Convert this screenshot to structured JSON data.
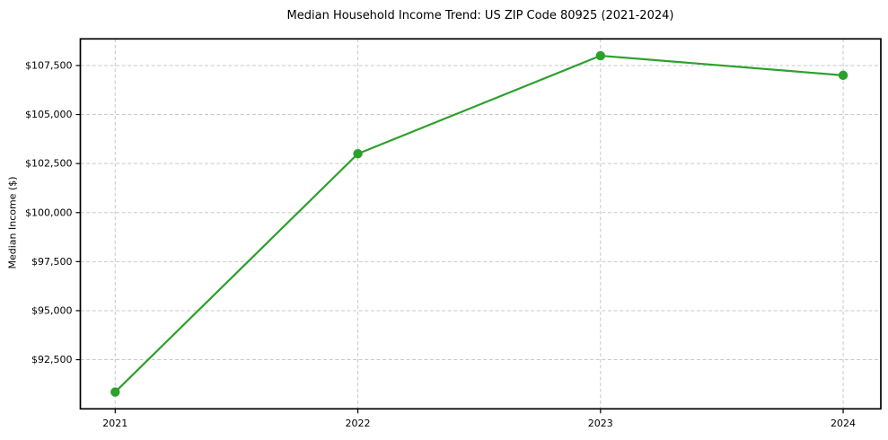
{
  "chart_data": {
    "type": "line",
    "title": "Median Household Income Trend: US ZIP Code 80925 (2021-2024)",
    "xlabel": "",
    "ylabel": "Median Income ($)",
    "categories": [
      "2021",
      "2022",
      "2023",
      "2024"
    ],
    "values": [
      90850,
      103000,
      108000,
      107000
    ],
    "ytick_values": [
      92500,
      95000,
      97500,
      100000,
      102500,
      105000,
      107500
    ],
    "ytick_labels": [
      "$92,500",
      "$95,000",
      "$97,500",
      "$100,000",
      "$102,500",
      "$105,000",
      "$107,500"
    ],
    "ylim": [
      89993,
      108858
    ],
    "grid": true,
    "grid_style": "dashed",
    "legend": "none",
    "line_color": "#2ca02c",
    "marker": "circle",
    "background_color": "#ffffff",
    "text_color": "#000000",
    "grid_color": "#c9c9c9"
  }
}
